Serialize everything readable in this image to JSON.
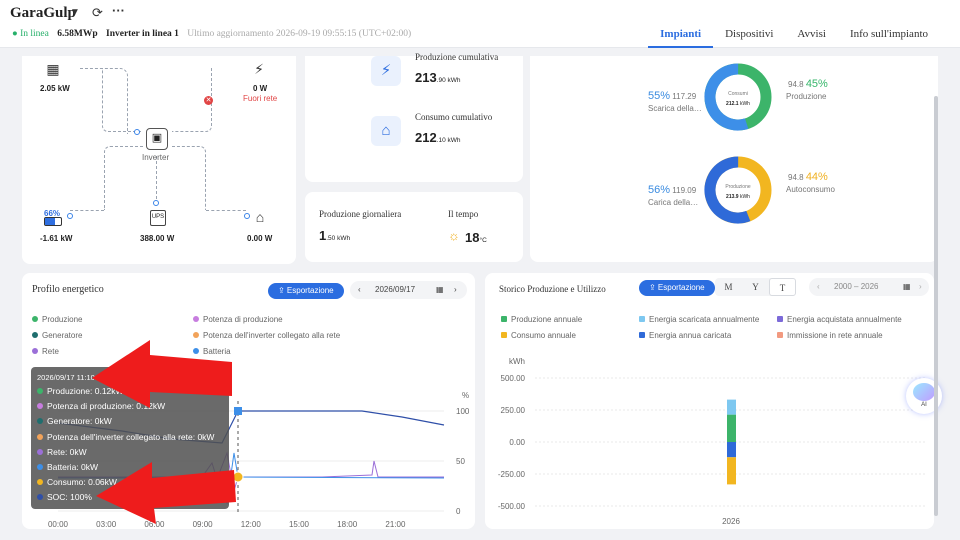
{
  "header": {
    "app_name": "GaraGulp",
    "dropdown_icon": "caret-down-icon",
    "refresh_icon": "refresh-icon",
    "more_icon": "more-icon",
    "status_online": "● In linea",
    "capacity": "6.58MWp",
    "inverter_status": "Inverter in linea 1",
    "last_update": "Ultimo aggiornamento 2026-09-19 09:55:15 (UTC+02:00)"
  },
  "tabs": [
    {
      "label": "Impianti",
      "active": true
    },
    {
      "label": "Dispositivi",
      "active": false
    },
    {
      "label": "Avvisi",
      "active": false
    },
    {
      "label": "Info sull'impianto",
      "active": false
    }
  ],
  "flow": {
    "pv_value": "2.05 kW",
    "grid_value": "0 W",
    "grid_status": "Fuori rete",
    "inverter_label": "Inverter",
    "battery_pct": "66%",
    "battery_value": "-1.61 kW",
    "ups_value": "388.00 W",
    "home_value": "0.00 W"
  },
  "stats": {
    "cum_production_label": "Produzione cumulativa",
    "cum_production_value": "213",
    "cum_production_unit": ".90 kWh",
    "cum_consumption_label": "Consumo cumulativo",
    "cum_consumption_value": "212",
    "cum_consumption_unit": ".10 kWh",
    "daily_label": "Produzione giornaliera",
    "daily_value": "1",
    "daily_unit": ".50 kWh",
    "weather_label": "Il tempo",
    "weather_value": "18",
    "weather_unit": "°C"
  },
  "donuts": {
    "top": {
      "center_title": "Consumi",
      "center_value": "212.1",
      "center_unit": "kWh",
      "left_pct": "55%",
      "left_val": "117.29",
      "left_label": "Scarica della…",
      "right_val": "94.8",
      "right_pct": "45%",
      "right_label": "Produzione",
      "left_fraction": 0.55
    },
    "bottom": {
      "center_title": "Produzione",
      "center_value": "213.9",
      "center_unit": "kWh",
      "left_pct": "56%",
      "left_val": "119.09",
      "left_label": "Carica della…",
      "right_val": "94.8",
      "right_pct": "44%",
      "right_label": "Autoconsumo",
      "left_fraction": 0.56
    },
    "colors": {
      "blue": "#3d8fe8",
      "green": "#3cb46a",
      "navy": "#2f6ad8",
      "yellow": "#f2b620"
    }
  },
  "energy_profile": {
    "title": "Profilo energetico",
    "export_label": "⇪ Esportazione",
    "date": "2026/09/17",
    "legend": [
      {
        "label": "Produzione",
        "color": "#3cb46a"
      },
      {
        "label": "Potenza di produzione",
        "color": "#c77ddf"
      },
      {
        "label": "Generatore",
        "color": "#1f6e6e"
      },
      {
        "label": "Potenza dell'inverter collegato alla rete",
        "color": "#f2a35a"
      },
      {
        "label": "Rete",
        "color": "#9b6fd8"
      },
      {
        "label": "Batteria",
        "color": "#3d8fe8"
      }
    ],
    "y_unit": "%",
    "y_ticks": [
      "100",
      "50",
      "0"
    ],
    "x_ticks": [
      "00:00",
      "03:00",
      "06:00",
      "09:00",
      "12:00",
      "15:00",
      "18:00",
      "21:00"
    ]
  },
  "tooltip": {
    "title": "2026/09/17 11:10:00",
    "rows": [
      {
        "label": "Produzione: 0.12kW",
        "color": "#3cb46a"
      },
      {
        "label": "Potenza di produzione: 0.12kW",
        "color": "#c77ddf"
      },
      {
        "label": "Generatore: 0kW",
        "color": "#1f6e6e"
      },
      {
        "label": "Potenza dell'inverter collegato alla rete: 0kW",
        "color": "#f2a35a"
      },
      {
        "label": "Rete: 0kW",
        "color": "#9b6fd8"
      },
      {
        "label": "Batteria: 0kW",
        "color": "#3d8fe8"
      },
      {
        "label": "Consumo: 0.06kW",
        "color": "#f2b620"
      },
      {
        "label": "SOC: 100%",
        "color": "#2f4fa8"
      }
    ]
  },
  "history": {
    "title": "Storico Produzione e Utilizzo",
    "export_label": "⇪ Esportazione",
    "segments": [
      "M",
      "Y",
      "T"
    ],
    "selected_segment": "T",
    "range": "2000 – 2026",
    "legend": [
      {
        "label": "Produzione annuale",
        "color": "#3cb46a"
      },
      {
        "label": "Energia scaricata annualmente",
        "color": "#7ec8f0"
      },
      {
        "label": "Energia acquistata annualmente",
        "color": "#7c6ad8"
      },
      {
        "label": "Consumo annuale",
        "color": "#f2b620"
      },
      {
        "label": "Energia annua caricata",
        "color": "#2f6ad8"
      },
      {
        "label": "Immissione in rete annuale",
        "color": "#f29a80"
      }
    ],
    "y_unit": "kWh",
    "y_ticks": [
      "500.00",
      "250.00",
      "0.00",
      "-250.00",
      "-500.00"
    ],
    "x_label": "2026"
  },
  "chart_data": {
    "type": "bar",
    "categories": [
      "2026"
    ],
    "series": [
      {
        "name": "Produzione annuale",
        "values": [
          213.9
        ]
      },
      {
        "name": "Energia scaricata annualmente",
        "values": [
          117.3
        ]
      },
      {
        "name": "Energia annua caricata",
        "values": [
          -119.1
        ]
      },
      {
        "name": "Consumo annuale",
        "values": [
          -212.1
        ]
      }
    ],
    "ylabel": "kWh",
    "ylim": [
      -500,
      500
    ]
  },
  "ai_label": "AI"
}
